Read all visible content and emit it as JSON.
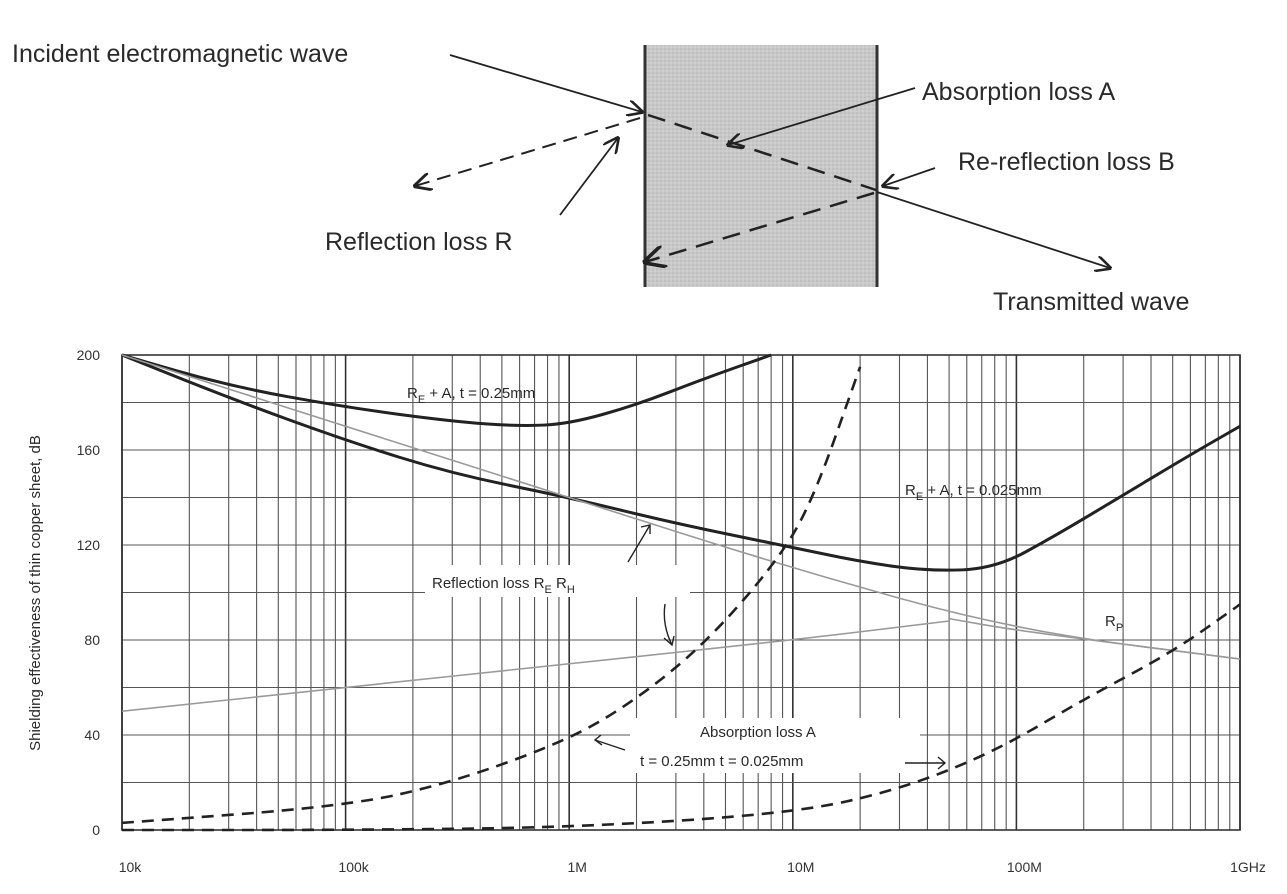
{
  "diagram": {
    "incident_label": "Incident electromagnetic wave",
    "absorption_label": "Absorption loss A",
    "rereflection_label": "Re-reflection loss B",
    "reflection_label": "Reflection loss R",
    "transmitted_label": "Transmitted wave"
  },
  "chart_data": {
    "type": "line",
    "ylabel": "Shielding effectiveness of thin copper sheet, dB",
    "xlabel": "",
    "x_scale": "log",
    "xlim": [
      10000,
      1000000000
    ],
    "ylim": [
      0,
      200
    ],
    "x_tick_labels": [
      "10k",
      "100k",
      "1M",
      "10M",
      "100M",
      "1GHz"
    ],
    "x_tick_values": [
      10000,
      100000,
      1000000,
      10000000,
      100000000,
      1000000000
    ],
    "y_tick_labels": [
      "0",
      "40",
      "80",
      "120",
      "160",
      "200"
    ],
    "y_tick_values": [
      0,
      40,
      80,
      120,
      160,
      200
    ],
    "grid": true,
    "series": [
      {
        "name": "RE + A, t = 0.25mm",
        "style": "solid-bold",
        "x": [
          10000,
          30000,
          100000,
          300000,
          600000,
          1000000,
          2000000,
          4000000,
          8000000
        ],
        "y": [
          200,
          187,
          178,
          172,
          170,
          171,
          179,
          190,
          200
        ]
      },
      {
        "name": "RE + A, t = 0.025mm",
        "style": "solid-bold",
        "x": [
          10000,
          30000,
          100000,
          300000,
          1000000,
          3000000,
          10000000,
          20000000,
          40000000,
          80000000,
          150000000,
          300000000,
          600000000,
          1000000000
        ],
        "y": [
          200,
          182,
          164,
          150,
          140,
          129,
          119,
          113,
          109,
          110,
          124,
          141,
          158,
          170
        ]
      },
      {
        "name": "Reflection loss RE",
        "style": "solid-thin",
        "x": [
          10000,
          100000,
          1000000,
          10000000,
          100000000,
          1000000000
        ],
        "y": [
          200,
          170,
          140,
          110,
          84,
          72
        ]
      },
      {
        "name": "Reflection loss RH",
        "style": "solid-thin",
        "x": [
          10000,
          100000,
          1000000,
          10000000,
          50000000
        ],
        "y": [
          50,
          60,
          70,
          80,
          88
        ]
      },
      {
        "name": "Rp",
        "style": "solid-thin",
        "x": [
          50000000,
          100000000,
          1000000000
        ],
        "y": [
          89,
          84,
          72
        ]
      },
      {
        "name": "Absorption loss A, t = 0.25mm",
        "style": "dashed",
        "x": [
          10000,
          100000,
          300000,
          1000000,
          2000000,
          4000000,
          8000000,
          12000000,
          20000000
        ],
        "y": [
          3,
          10,
          20,
          38,
          55,
          78,
          110,
          136,
          195
        ]
      },
      {
        "name": "Absorption loss A, t = 0.025mm",
        "style": "dashed",
        "x": [
          10000,
          100000,
          1000000,
          10000000,
          30000000,
          80000000,
          200000000,
          500000000,
          1000000000
        ],
        "y": [
          0,
          0,
          1,
          7,
          17,
          33,
          55,
          75,
          95
        ]
      }
    ],
    "annotations": [
      {
        "text": "R",
        "sub": "E",
        "tail": " + A, t = 0.25mm"
      },
      {
        "text": "R",
        "sub": "E",
        "tail": " + A, t = 0.025mm"
      },
      {
        "text": "Reflection loss  R",
        "sub": "E",
        "tail": "   R",
        "sub2": "H"
      },
      {
        "text": "R",
        "sub": "P",
        "tail": ""
      },
      {
        "text": "Absorption loss A",
        "sub": "",
        "tail": ""
      },
      {
        "text": "t = 0.25mm   t = 0.025mm",
        "sub": "",
        "tail": ""
      }
    ]
  }
}
